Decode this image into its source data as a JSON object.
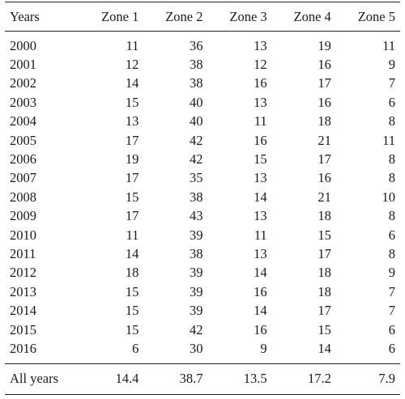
{
  "table": {
    "headers": [
      "Years",
      "Zone 1",
      "Zone 2",
      "Zone 3",
      "Zone 4",
      "Zone 5"
    ],
    "rows": [
      [
        "2000",
        "11",
        "36",
        "13",
        "19",
        "11"
      ],
      [
        "2001",
        "12",
        "38",
        "12",
        "16",
        "9"
      ],
      [
        "2002",
        "14",
        "38",
        "16",
        "17",
        "7"
      ],
      [
        "2003",
        "15",
        "40",
        "13",
        "16",
        "6"
      ],
      [
        "2004",
        "13",
        "40",
        "11",
        "18",
        "8"
      ],
      [
        "2005",
        "17",
        "42",
        "16",
        "21",
        "11"
      ],
      [
        "2006",
        "19",
        "42",
        "15",
        "17",
        "8"
      ],
      [
        "2007",
        "17",
        "35",
        "13",
        "16",
        "8"
      ],
      [
        "2008",
        "15",
        "38",
        "14",
        "21",
        "10"
      ],
      [
        "2009",
        "17",
        "43",
        "13",
        "18",
        "8"
      ],
      [
        "2010",
        "11",
        "39",
        "11",
        "15",
        "6"
      ],
      [
        "2011",
        "14",
        "38",
        "13",
        "17",
        "8"
      ],
      [
        "2012",
        "18",
        "39",
        "14",
        "18",
        "9"
      ],
      [
        "2013",
        "15",
        "39",
        "16",
        "18",
        "7"
      ],
      [
        "2014",
        "15",
        "39",
        "14",
        "17",
        "7"
      ],
      [
        "2015",
        "15",
        "42",
        "16",
        "15",
        "6"
      ],
      [
        "2016",
        "6",
        "30",
        "9",
        "14",
        "6"
      ]
    ],
    "footer": [
      "All years",
      "14.4",
      "38.7",
      "13.5",
      "17.2",
      "7.9"
    ]
  }
}
